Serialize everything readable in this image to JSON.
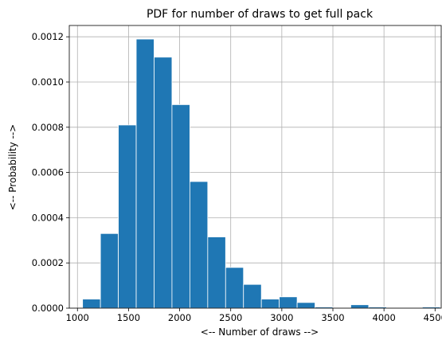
{
  "chart_data": {
    "type": "bar",
    "title": "PDF for number of draws to get full pack",
    "xlabel": "<-- Number of draws -->",
    "ylabel": "<-- Probability -->",
    "xlim": [
      920,
      4560
    ],
    "ylim": [
      0,
      0.00125
    ],
    "grid": true,
    "bar_color": "#1f77b4",
    "edge_color": "#ffffff",
    "x_ticks": [
      1000,
      1500,
      2000,
      2500,
      3000,
      3500,
      4000,
      4500
    ],
    "y_ticks": [
      0.0,
      0.0002,
      0.0004,
      0.0006,
      0.0008,
      0.001,
      0.0012
    ],
    "x_tick_labels": [
      "1000",
      "1500",
      "2000",
      "2500",
      "3000",
      "3500",
      "4000",
      "4500"
    ],
    "y_tick_labels": [
      "0.0000",
      "0.0002",
      "0.0004",
      "0.0006",
      "0.0008",
      "0.0010",
      "0.0012"
    ],
    "bins": [
      {
        "start": 1050,
        "end": 1225,
        "value": 4e-05
      },
      {
        "start": 1225,
        "end": 1400,
        "value": 0.00033
      },
      {
        "start": 1400,
        "end": 1575,
        "value": 0.00081
      },
      {
        "start": 1575,
        "end": 1750,
        "value": 0.00119
      },
      {
        "start": 1750,
        "end": 1925,
        "value": 0.00111
      },
      {
        "start": 1925,
        "end": 2100,
        "value": 0.0009
      },
      {
        "start": 2100,
        "end": 2275,
        "value": 0.00056
      },
      {
        "start": 2275,
        "end": 2450,
        "value": 0.000315
      },
      {
        "start": 2450,
        "end": 2625,
        "value": 0.00018
      },
      {
        "start": 2625,
        "end": 2800,
        "value": 0.000105
      },
      {
        "start": 2800,
        "end": 2975,
        "value": 4e-05
      },
      {
        "start": 2975,
        "end": 3150,
        "value": 5e-05
      },
      {
        "start": 3150,
        "end": 3325,
        "value": 2.5e-05
      },
      {
        "start": 3325,
        "end": 3500,
        "value": 5e-06
      },
      {
        "start": 3500,
        "end": 3675,
        "value": 0.0
      },
      {
        "start": 3675,
        "end": 3850,
        "value": 1.5e-05
      },
      {
        "start": 3850,
        "end": 4025,
        "value": 5e-06
      },
      {
        "start": 4025,
        "end": 4200,
        "value": 0.0
      },
      {
        "start": 4200,
        "end": 4375,
        "value": 0.0
      },
      {
        "start": 4375,
        "end": 4550,
        "value": 5e-06
      }
    ]
  }
}
